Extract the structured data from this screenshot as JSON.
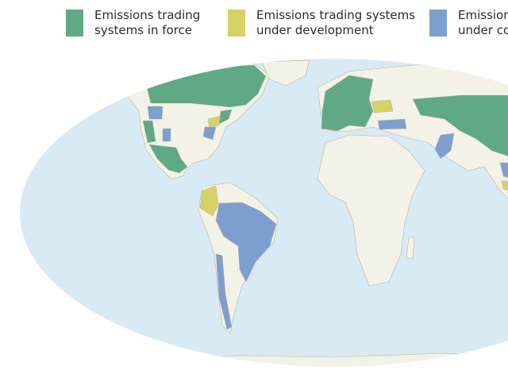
{
  "legend": [
    {
      "line1": "Emissions trading",
      "line2": "systems in force",
      "color": "#5fa985"
    },
    {
      "line1": "Emissions trading systems",
      "line2": "under development",
      "color": "#d6d263"
    },
    {
      "line1": "Emissions",
      "line2": "under con",
      "color": "#7d9fd0"
    }
  ],
  "colors": {
    "ocean": "#d8eaf3",
    "land": "#f4f2e7",
    "border": "#b9b6a8"
  }
}
